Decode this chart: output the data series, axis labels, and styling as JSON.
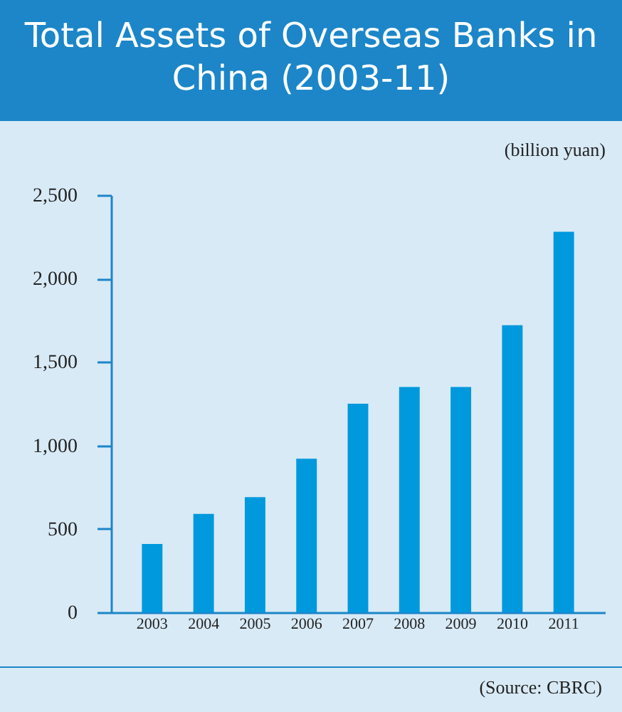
{
  "chart_data": {
    "type": "bar",
    "title": "Total Assets of Overseas Banks in China (2003-11)",
    "ylabel": "(billion yuan)",
    "categories": [
      "2003",
      "2004",
      "2005",
      "2006",
      "2007",
      "2008",
      "2009",
      "2010",
      "2011"
    ],
    "values": [
      410,
      590,
      690,
      920,
      1250,
      1350,
      1350,
      1720,
      2280
    ],
    "color": "#0099dd",
    "ylim": [
      0,
      2500
    ],
    "yticks": [
      0,
      {
        "value": 500,
        "label": "500"
      },
      {
        "value": 1000,
        "label": "1,000"
      },
      {
        "value": 1500,
        "label": "1,500"
      },
      {
        "value": 2000,
        "label": "2,000"
      },
      {
        "value": 2500,
        "label": "2,500"
      }
    ],
    "grid": false,
    "annotations": [
      "(Source: CBRC)"
    ]
  }
}
